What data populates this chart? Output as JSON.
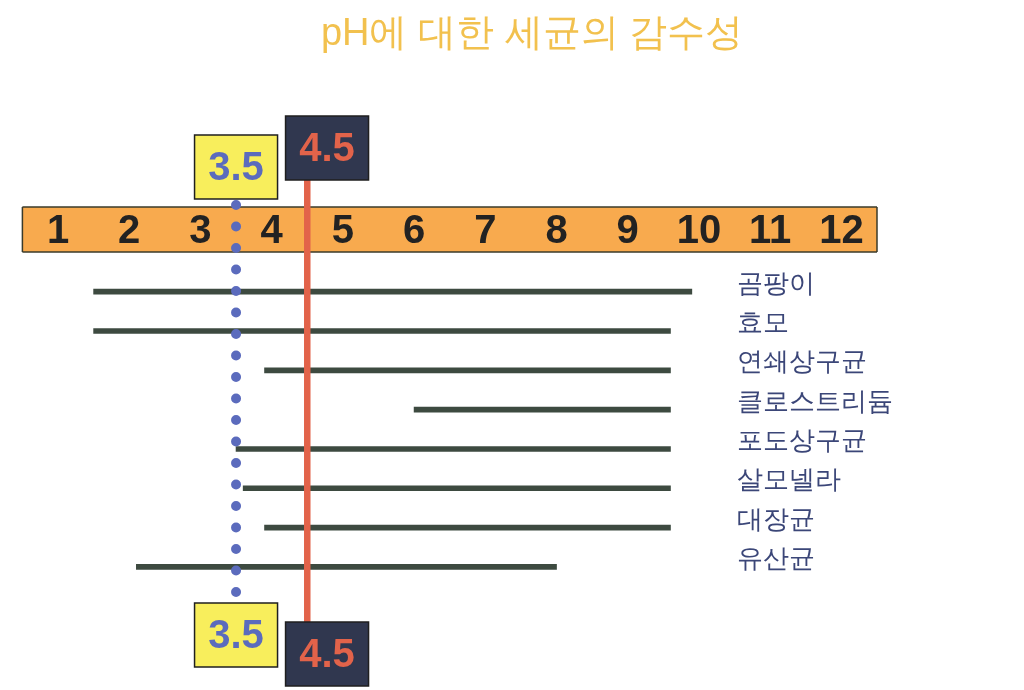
{
  "chart_data": {
    "type": "bar",
    "orientation": "horizontal",
    "title": "pH에 대한 세균의 감수성",
    "categories": [
      "곰팡이",
      "효모",
      "연쇄상구균",
      "클로스트리듐",
      "포도상구균",
      "살모넬라",
      "대장균",
      "유산균"
    ],
    "base": [
      1.5,
      1.5,
      3.9,
      6.0,
      3.5,
      3.6,
      3.9,
      2.1
    ],
    "values": [
      8.4,
      8.1,
      5.7,
      3.6,
      6.1,
      6.0,
      5.7,
      5.9
    ],
    "color": "#3d4a40",
    "xlim": [
      0.5,
      12.5
    ],
    "xticks": [
      1,
      2,
      3,
      4,
      5,
      6,
      7,
      8,
      9,
      10,
      11,
      12
    ],
    "ref_lines": [
      {
        "axis": "x",
        "value": 3.5,
        "label": "3.5",
        "color": "#5b6bbd",
        "line_style": "dotted"
      },
      {
        "axis": "x",
        "value": 4.5,
        "label": "4.5",
        "color": "#e2634a",
        "line_style": "solid"
      }
    ]
  }
}
